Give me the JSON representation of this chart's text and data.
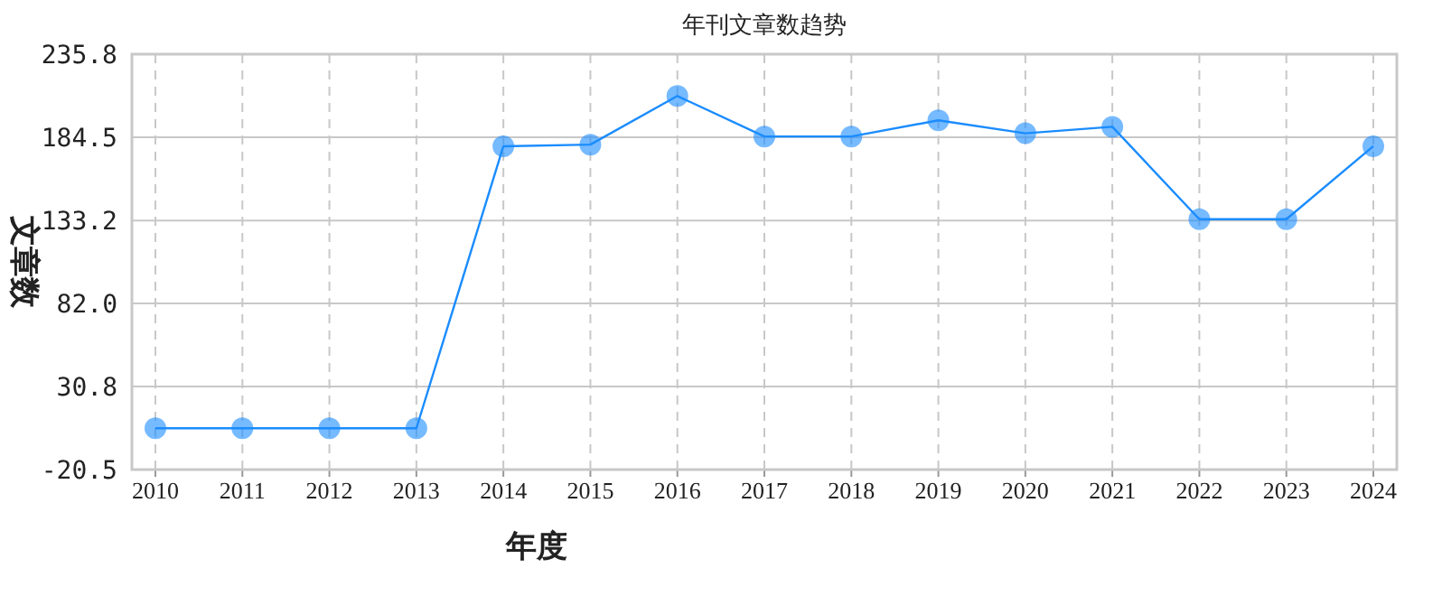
{
  "chart_data": {
    "type": "line",
    "title": "年刊文章数趋势",
    "xlabel": "年度",
    "ylabel": "文章数",
    "categories": [
      "2010",
      "2011",
      "2012",
      "2013",
      "2014",
      "2015",
      "2016",
      "2017",
      "2018",
      "2019",
      "2020",
      "2021",
      "2022",
      "2023",
      "2024"
    ],
    "series": [
      {
        "color": "#1a8cff",
        "values": [
          5,
          5,
          5,
          5,
          179,
          180,
          210,
          185,
          185,
          195,
          187,
          191,
          134,
          134,
          179
        ]
      }
    ],
    "ylim": [
      -20.5,
      235.8
    ],
    "yticks": [
      -20.5,
      30.8,
      {
        "value": 82,
        "label": "82.0"
      },
      133.2,
      184.5,
      235.8
    ],
    "grid": true,
    "marker": "circle",
    "line_style": "solid"
  }
}
